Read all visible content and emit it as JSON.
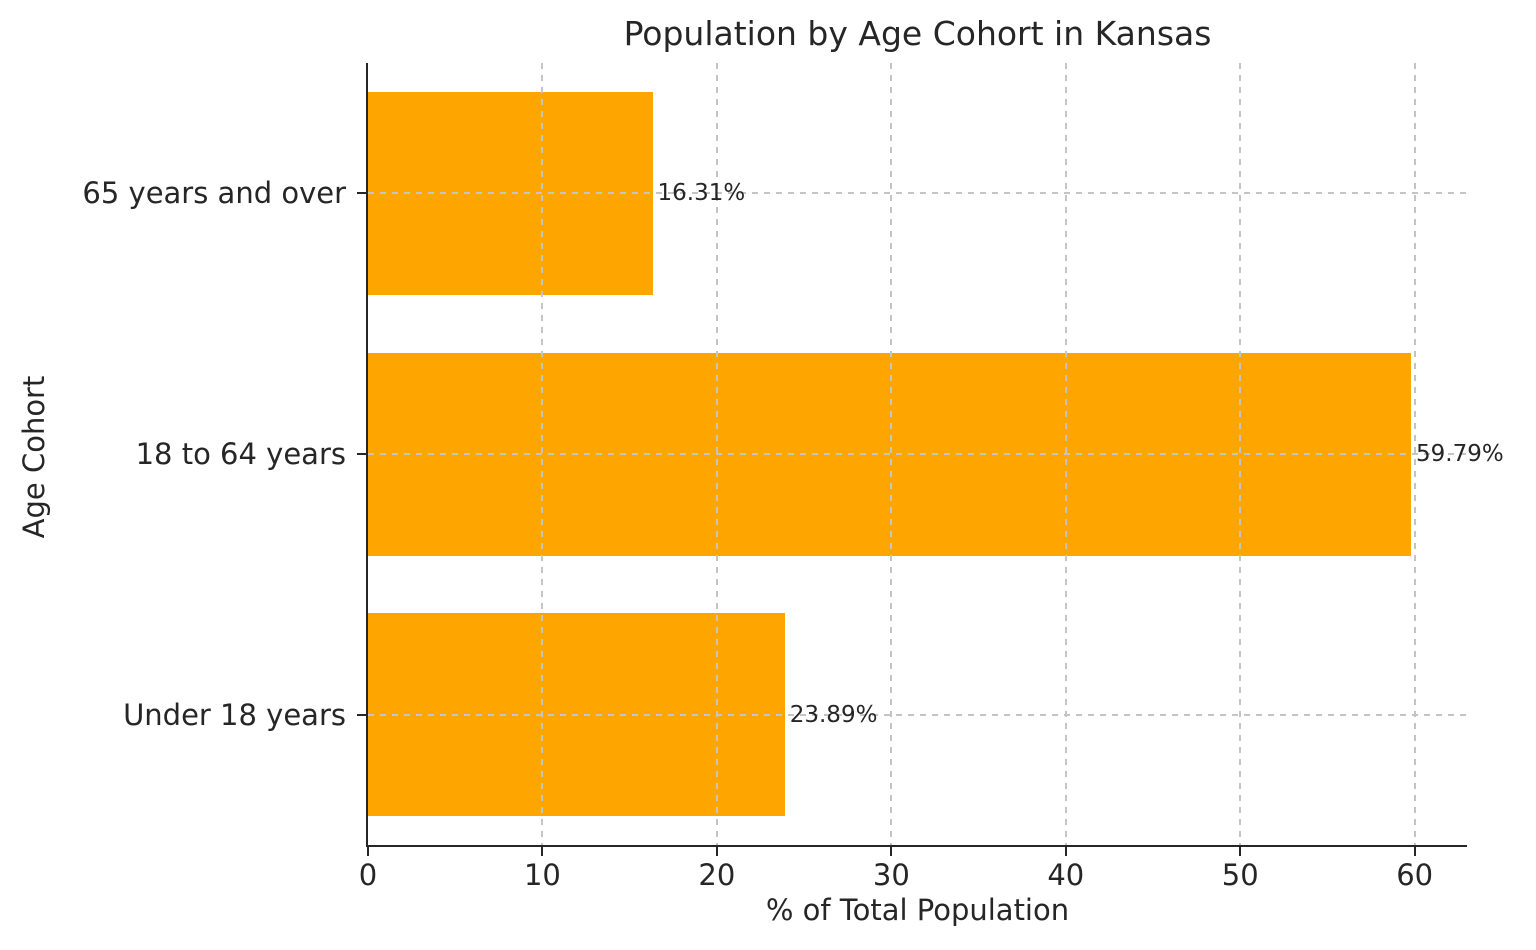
{
  "chart_data": {
    "type": "bar",
    "orientation": "horizontal",
    "title": "Population by Age Cohort in Kansas",
    "xlabel": "% of Total Population",
    "ylabel": "Age Cohort",
    "categories": [
      "65 years and over",
      "18 to 64 years",
      "Under 18 years"
    ],
    "values": [
      16.31,
      59.79,
      23.89
    ],
    "value_labels": [
      "16.31%",
      "59.79%",
      "23.89%"
    ],
    "x_ticks": [
      0,
      10,
      20,
      30,
      40,
      50,
      60
    ],
    "xlim": [
      0,
      63
    ],
    "grid": "dashed-both-axes-over-bars",
    "legend": "none",
    "bar_color": "#FFA500",
    "text_color": "#262626",
    "grid_color": "#c4c4c4",
    "background": "#ffffff"
  }
}
